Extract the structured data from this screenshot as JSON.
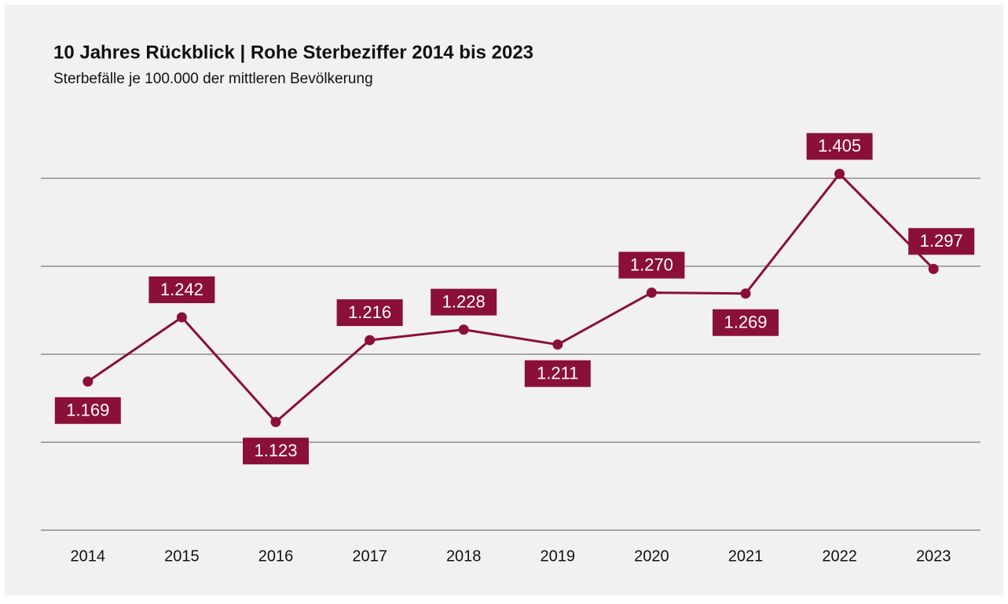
{
  "chart_data": {
    "type": "line",
    "title": "10 Jahres Rückblick | Rohe Sterbeziffer 2014 bis 2023",
    "subtitle": "Sterbefälle je 100.000 der mittleren Bevölkerung",
    "categories": [
      "2014",
      "2015",
      "2016",
      "2017",
      "2018",
      "2019",
      "2020",
      "2021",
      "2022",
      "2023"
    ],
    "series": [
      {
        "name": "Rohe Sterbeziffer",
        "color": "#8a1038",
        "values": [
          1169,
          1242,
          1123,
          1216,
          1228,
          1211,
          1270,
          1269,
          1405,
          1297
        ],
        "value_labels": [
          "1.169",
          "1.242",
          "1.123",
          "1.216",
          "1.228",
          "1.211",
          "1.270",
          "1.269",
          "1.405",
          "1.297"
        ]
      }
    ],
    "ylim": [
      1000,
      1400
    ],
    "yticks": [
      1000,
      1100,
      1200,
      1300,
      1400
    ],
    "grid": true,
    "show_ytick_labels": false
  }
}
